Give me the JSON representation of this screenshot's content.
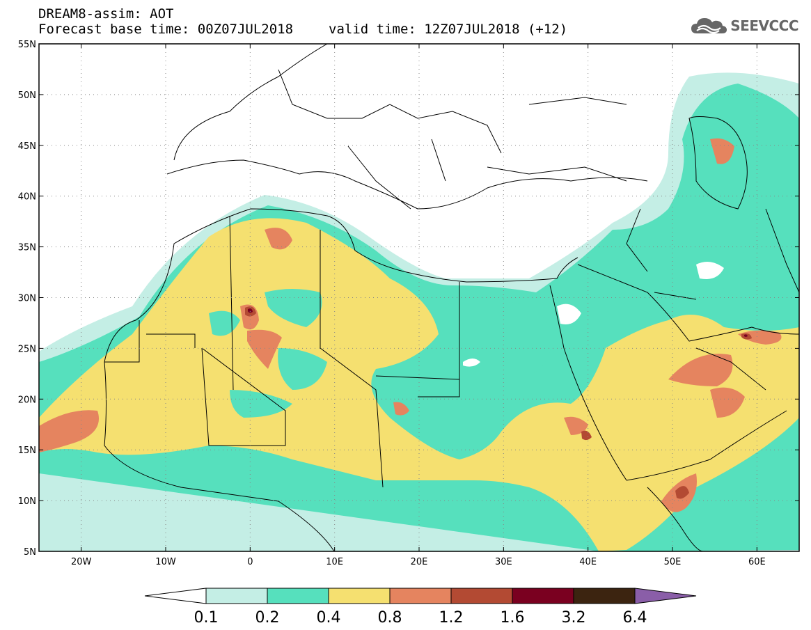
{
  "header": {
    "line1": "DREAM8-assim: AOT",
    "base_time": "Forecast base time: 00Z07JUL2018",
    "valid_time": "valid time: 12Z07JUL2018 (+12)",
    "logo_text": "SEEVCCC",
    "logo_icon": "cloud-icon"
  },
  "map": {
    "lon_range": [
      -25,
      65
    ],
    "lat_range": [
      5,
      55
    ],
    "lat_ticks": [
      "5N",
      "10N",
      "15N",
      "20N",
      "25N",
      "30N",
      "35N",
      "40N",
      "45N",
      "50N",
      "55N"
    ],
    "lon_ticks": [
      "20W",
      "10W",
      "0",
      "10E",
      "20E",
      "30E",
      "40E",
      "50E",
      "60E"
    ],
    "grid": true
  },
  "colorbar": {
    "labels": [
      "0.1",
      "0.2",
      "0.4",
      "0.8",
      "1.2",
      "1.6",
      "3.2",
      "6.4"
    ],
    "colors": [
      "#ffffff",
      "#c4eee5",
      "#56e0bd",
      "#f5e070",
      "#e5845f",
      "#b34a33",
      "#7a0020",
      "#3c2410",
      "#8a5ea8"
    ]
  }
}
